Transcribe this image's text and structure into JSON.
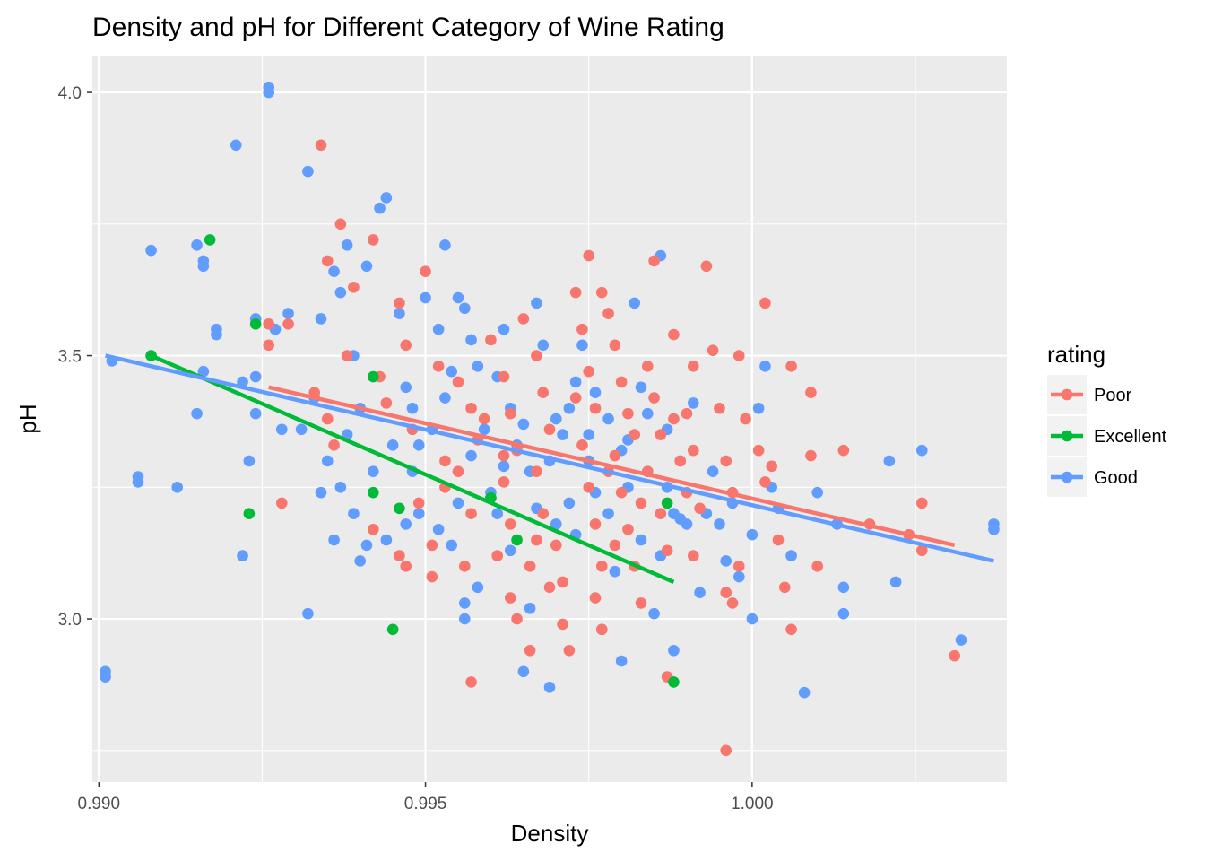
{
  "chart_data": {
    "type": "scatter",
    "title": "Density and pH for Different Category of Wine Rating",
    "xlabel": "Density",
    "ylabel": "pH",
    "xlim": [
      0.9899,
      1.0039
    ],
    "ylim": [
      2.69,
      4.07
    ],
    "x_ticks": [
      0.99,
      0.995,
      1.0
    ],
    "x_tick_labels": [
      "0.990",
      "0.995",
      "1.000"
    ],
    "y_ticks": [
      3.0,
      3.5,
      4.0
    ],
    "y_tick_labels": [
      "3.0",
      "3.5",
      "4.0"
    ],
    "grid": true,
    "legend": {
      "title": "rating",
      "position": "right"
    },
    "series": [
      {
        "name": "Poor",
        "color": "#F8766D",
        "trend": [
          [
            0.9926,
            3.44
          ],
          [
            1.0031,
            3.14
          ]
        ],
        "points": [
          [
            0.9934,
            3.9
          ],
          [
            0.9937,
            3.75
          ],
          [
            0.9942,
            3.72
          ],
          [
            0.9935,
            3.68
          ],
          [
            0.9939,
            3.63
          ],
          [
            0.9946,
            3.6
          ],
          [
            0.995,
            3.66
          ],
          [
            0.9926,
            3.56
          ],
          [
            0.9929,
            3.56
          ],
          [
            0.9926,
            3.52
          ],
          [
            0.9933,
            3.43
          ],
          [
            0.9935,
            3.38
          ],
          [
            0.9936,
            3.33
          ],
          [
            0.9928,
            3.22
          ],
          [
            0.9938,
            3.5
          ],
          [
            0.9943,
            3.46
          ],
          [
            0.9947,
            3.52
          ],
          [
            0.9952,
            3.48
          ],
          [
            0.9944,
            3.41
          ],
          [
            0.9948,
            3.36
          ],
          [
            0.9953,
            3.3
          ],
          [
            0.9949,
            3.22
          ],
          [
            0.9951,
            3.14
          ],
          [
            0.9947,
            3.1
          ],
          [
            0.9951,
            3.08
          ],
          [
            0.9942,
            3.17
          ],
          [
            0.9946,
            3.12
          ],
          [
            0.9955,
            3.45
          ],
          [
            0.9957,
            3.4
          ],
          [
            0.9958,
            3.34
          ],
          [
            0.9955,
            3.28
          ],
          [
            0.9957,
            3.2
          ],
          [
            0.9956,
            3.1
          ],
          [
            0.9957,
            2.88
          ],
          [
            0.996,
            3.53
          ],
          [
            0.9962,
            3.46
          ],
          [
            0.9963,
            3.39
          ],
          [
            0.9964,
            3.32
          ],
          [
            0.9962,
            3.26
          ],
          [
            0.9963,
            3.18
          ],
          [
            0.9961,
            3.12
          ],
          [
            0.9963,
            3.04
          ],
          [
            0.9964,
            3.0
          ],
          [
            0.9966,
            2.94
          ],
          [
            0.9965,
            3.57
          ],
          [
            0.9967,
            3.5
          ],
          [
            0.9968,
            3.43
          ],
          [
            0.9969,
            3.36
          ],
          [
            0.9967,
            3.28
          ],
          [
            0.9968,
            3.2
          ],
          [
            0.997,
            3.14
          ],
          [
            0.9969,
            3.06
          ],
          [
            0.9971,
            2.99
          ],
          [
            0.9972,
            2.94
          ],
          [
            0.9973,
            3.62
          ],
          [
            0.9974,
            3.55
          ],
          [
            0.9975,
            3.69
          ],
          [
            0.9975,
            3.47
          ],
          [
            0.9976,
            3.4
          ],
          [
            0.9974,
            3.33
          ],
          [
            0.9975,
            3.25
          ],
          [
            0.9976,
            3.18
          ],
          [
            0.9977,
            3.1
          ],
          [
            0.9976,
            3.04
          ],
          [
            0.9977,
            2.98
          ],
          [
            0.9977,
            3.62
          ],
          [
            0.9978,
            3.58
          ],
          [
            0.9979,
            3.52
          ],
          [
            0.998,
            3.45
          ],
          [
            0.9981,
            3.39
          ],
          [
            0.9979,
            3.31
          ],
          [
            0.998,
            3.24
          ],
          [
            0.9981,
            3.17
          ],
          [
            0.9982,
            3.1
          ],
          [
            0.9983,
            3.03
          ],
          [
            0.9984,
            3.48
          ],
          [
            0.9985,
            3.42
          ],
          [
            0.9986,
            3.35
          ],
          [
            0.9984,
            3.28
          ],
          [
            0.9986,
            3.2
          ],
          [
            0.9987,
            3.13
          ],
          [
            0.9985,
            3.68
          ],
          [
            0.9988,
            3.54
          ],
          [
            0.9988,
            3.38
          ],
          [
            0.9989,
            3.3
          ],
          [
            0.9991,
            3.48
          ],
          [
            0.999,
            3.39
          ],
          [
            0.9991,
            3.32
          ],
          [
            0.999,
            3.24
          ],
          [
            0.9991,
            3.12
          ],
          [
            0.9992,
            3.21
          ],
          [
            0.9993,
            3.67
          ],
          [
            0.9994,
            3.51
          ],
          [
            0.9995,
            3.4
          ],
          [
            0.9996,
            3.3
          ],
          [
            0.9997,
            3.24
          ],
          [
            0.9998,
            3.1
          ],
          [
            0.9996,
            3.05
          ],
          [
            0.9997,
            3.03
          ],
          [
            0.9998,
            3.5
          ],
          [
            0.9999,
            3.38
          ],
          [
            1.0002,
            3.6
          ],
          [
            1.0001,
            3.32
          ],
          [
            1.0002,
            3.26
          ],
          [
            1.0003,
            3.29
          ],
          [
            1.0004,
            3.15
          ],
          [
            1.0005,
            3.06
          ],
          [
            1.0006,
            3.48
          ],
          [
            1.0006,
            2.98
          ],
          [
            1.0009,
            3.43
          ],
          [
            1.0009,
            3.31
          ],
          [
            1.001,
            3.1
          ],
          [
            1.0014,
            3.32
          ],
          [
            1.0018,
            3.18
          ],
          [
            1.0024,
            3.16
          ],
          [
            1.0026,
            3.13
          ],
          [
            1.0026,
            3.22
          ],
          [
            1.0031,
            2.93
          ],
          [
            0.9996,
            2.75
          ],
          [
            0.9987,
            2.89
          ],
          [
            0.9966,
            3.1
          ],
          [
            0.9971,
            3.07
          ],
          [
            0.9959,
            3.38
          ],
          [
            0.9973,
            3.42
          ],
          [
            0.9962,
            3.31
          ],
          [
            0.9978,
            3.28
          ],
          [
            0.9982,
            3.35
          ],
          [
            0.9967,
            3.15
          ],
          [
            0.9953,
            3.25
          ],
          [
            0.996,
            3.23
          ],
          [
            0.9979,
            3.14
          ],
          [
            0.9983,
            3.22
          ]
        ]
      },
      {
        "name": "Excellent",
        "color": "#00BA38",
        "trend": [
          [
            0.9908,
            3.5
          ],
          [
            0.9988,
            3.07
          ]
        ],
        "points": [
          [
            0.9908,
            3.5
          ],
          [
            0.9917,
            3.72
          ],
          [
            0.9924,
            3.56
          ],
          [
            0.9923,
            3.2
          ],
          [
            0.9942,
            3.46
          ],
          [
            0.9942,
            3.24
          ],
          [
            0.9945,
            2.98
          ],
          [
            0.9946,
            3.21
          ],
          [
            0.996,
            3.23
          ],
          [
            0.9964,
            3.15
          ],
          [
            0.9987,
            3.22
          ],
          [
            0.9988,
            2.88
          ]
        ]
      },
      {
        "name": "Good",
        "color": "#619CFF",
        "trend": [
          [
            0.9901,
            3.5
          ],
          [
            1.0037,
            3.11
          ]
        ],
        "points": [
          [
            0.9901,
            2.89
          ],
          [
            0.9901,
            2.9
          ],
          [
            0.9902,
            3.49
          ],
          [
            0.9906,
            3.26
          ],
          [
            0.9906,
            3.27
          ],
          [
            0.9908,
            3.7
          ],
          [
            0.9912,
            3.25
          ],
          [
            0.9915,
            3.71
          ],
          [
            0.9916,
            3.68
          ],
          [
            0.9916,
            3.67
          ],
          [
            0.9915,
            3.39
          ],
          [
            0.9916,
            3.47
          ],
          [
            0.9918,
            3.55
          ],
          [
            0.9918,
            3.54
          ],
          [
            0.9921,
            3.9
          ],
          [
            0.9922,
            3.45
          ],
          [
            0.9922,
            3.12
          ],
          [
            0.9923,
            3.3
          ],
          [
            0.9924,
            3.46
          ],
          [
            0.9924,
            3.39
          ],
          [
            0.9924,
            3.57
          ],
          [
            0.9926,
            4.01
          ],
          [
            0.9926,
            4.0
          ],
          [
            0.9927,
            3.55
          ],
          [
            0.9928,
            3.36
          ],
          [
            0.9929,
            3.58
          ],
          [
            0.9932,
            3.85
          ],
          [
            0.9932,
            3.01
          ],
          [
            0.9933,
            3.42
          ],
          [
            0.9934,
            3.57
          ],
          [
            0.9936,
            3.66
          ],
          [
            0.9937,
            3.62
          ],
          [
            0.9938,
            3.71
          ],
          [
            0.9939,
            3.5
          ],
          [
            0.994,
            3.4
          ],
          [
            0.9941,
            3.67
          ],
          [
            0.9943,
            3.78
          ],
          [
            0.9944,
            3.8
          ],
          [
            0.9946,
            3.58
          ],
          [
            0.9947,
            3.44
          ],
          [
            0.9948,
            3.4
          ],
          [
            0.9949,
            3.33
          ],
          [
            0.995,
            3.61
          ],
          [
            0.9952,
            3.55
          ],
          [
            0.9953,
            3.71
          ],
          [
            0.9954,
            3.47
          ],
          [
            0.9955,
            3.61
          ],
          [
            0.9956,
            3.59
          ],
          [
            0.9957,
            3.53
          ],
          [
            0.9958,
            3.48
          ],
          [
            0.9936,
            3.15
          ],
          [
            0.9939,
            3.2
          ],
          [
            0.994,
            3.11
          ],
          [
            0.9941,
            3.14
          ],
          [
            0.9944,
            3.15
          ],
          [
            0.9947,
            3.18
          ],
          [
            0.9949,
            3.2
          ],
          [
            0.9952,
            3.17
          ],
          [
            0.9954,
            3.14
          ],
          [
            0.9956,
            3.03
          ],
          [
            0.9956,
            3.0
          ],
          [
            0.9958,
            3.06
          ],
          [
            0.996,
            3.24
          ],
          [
            0.9961,
            3.46
          ],
          [
            0.9962,
            3.55
          ],
          [
            0.9963,
            3.4
          ],
          [
            0.9964,
            3.33
          ],
          [
            0.9966,
            3.28
          ],
          [
            0.9967,
            3.6
          ],
          [
            0.9968,
            3.52
          ],
          [
            0.9966,
            3.02
          ],
          [
            0.9965,
            2.9
          ],
          [
            0.9969,
            2.87
          ],
          [
            0.997,
            3.18
          ],
          [
            0.9971,
            3.35
          ],
          [
            0.9972,
            3.4
          ],
          [
            0.9973,
            3.45
          ],
          [
            0.9974,
            3.52
          ],
          [
            0.9975,
            3.3
          ],
          [
            0.9976,
            3.24
          ],
          [
            0.9977,
            2.98
          ],
          [
            0.9978,
            3.38
          ],
          [
            0.998,
            3.32
          ],
          [
            0.998,
            2.92
          ],
          [
            0.9981,
            3.25
          ],
          [
            0.9982,
            3.6
          ],
          [
            0.9983,
            3.44
          ],
          [
            0.9984,
            3.28
          ],
          [
            0.9985,
            3.01
          ],
          [
            0.9986,
            3.69
          ],
          [
            0.9987,
            3.36
          ],
          [
            0.9988,
            3.2
          ],
          [
            0.9988,
            2.94
          ],
          [
            0.9989,
            3.3
          ],
          [
            0.999,
            3.18
          ],
          [
            0.9991,
            3.41
          ],
          [
            0.9992,
            3.05
          ],
          [
            0.9993,
            3.2
          ],
          [
            0.9994,
            3.28
          ],
          [
            0.9995,
            3.18
          ],
          [
            0.9996,
            3.11
          ],
          [
            0.9997,
            3.22
          ],
          [
            0.9998,
            3.08
          ],
          [
            1.0,
            3.0
          ],
          [
            1.0,
            3.16
          ],
          [
            1.0001,
            3.4
          ],
          [
            1.0002,
            3.48
          ],
          [
            1.0003,
            3.25
          ],
          [
            1.0004,
            3.21
          ],
          [
            1.0006,
            3.12
          ],
          [
            1.0008,
            2.86
          ],
          [
            1.001,
            3.24
          ],
          [
            1.0013,
            3.18
          ],
          [
            1.0014,
            3.06
          ],
          [
            1.0014,
            3.01
          ],
          [
            1.0021,
            3.3
          ],
          [
            1.0022,
            3.07
          ],
          [
            1.0026,
            3.32
          ],
          [
            1.0032,
            2.96
          ],
          [
            1.0037,
            3.18
          ],
          [
            1.0037,
            3.17
          ],
          [
            0.9945,
            3.33
          ],
          [
            0.9948,
            3.28
          ],
          [
            0.9951,
            3.36
          ],
          [
            0.9953,
            3.42
          ],
          [
            0.9955,
            3.22
          ],
          [
            0.9957,
            3.31
          ],
          [
            0.9959,
            3.36
          ],
          [
            0.9961,
            3.2
          ],
          [
            0.9962,
            3.29
          ],
          [
            0.9963,
            3.13
          ],
          [
            0.9965,
            3.37
          ],
          [
            0.9967,
            3.21
          ],
          [
            0.9969,
            3.3
          ],
          [
            0.997,
            3.38
          ],
          [
            0.9972,
            3.22
          ],
          [
            0.9973,
            3.16
          ],
          [
            0.9975,
            3.35
          ],
          [
            0.9976,
            3.43
          ],
          [
            0.9978,
            3.2
          ],
          [
            0.9979,
            3.09
          ],
          [
            0.9981,
            3.34
          ],
          [
            0.9983,
            3.15
          ],
          [
            0.9984,
            3.39
          ],
          [
            0.9986,
            3.12
          ],
          [
            0.9987,
            3.25
          ],
          [
            0.9989,
            3.19
          ],
          [
            0.9942,
            3.28
          ],
          [
            0.9938,
            3.35
          ],
          [
            0.9935,
            3.3
          ],
          [
            0.9934,
            3.24
          ],
          [
            0.9937,
            3.25
          ],
          [
            0.9931,
            3.36
          ]
        ]
      }
    ]
  }
}
